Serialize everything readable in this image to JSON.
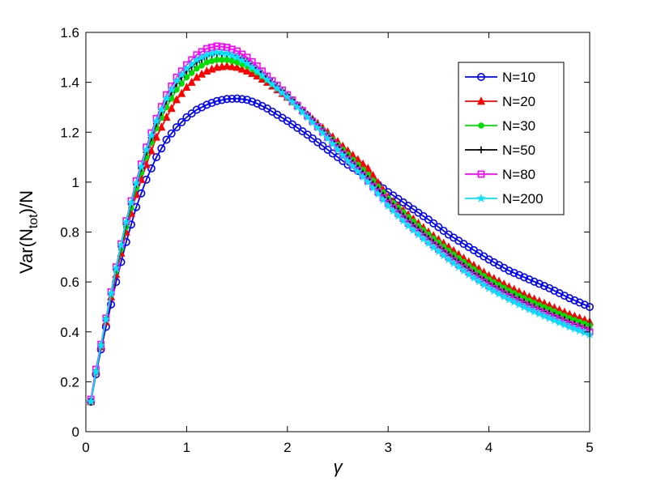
{
  "chart_data": {
    "type": "line",
    "xlabel": "γ",
    "ylabel": {
      "main": "Var(N",
      "sub": "tot",
      "tail": ")/N"
    },
    "xlim": [
      0,
      5
    ],
    "ylim": [
      0,
      1.6
    ],
    "xticks": [
      0,
      1,
      2,
      3,
      4,
      5
    ],
    "xtick_labels": [
      "0",
      "1",
      "2",
      "3",
      "4",
      "5"
    ],
    "yticks": [
      0,
      0.2,
      0.4,
      0.6,
      0.8,
      1.0,
      1.2,
      1.4,
      1.6
    ],
    "ytick_labels": [
      "0",
      "0.2",
      "0.4",
      "0.6",
      "0.8",
      "1",
      "1.2",
      "1.4",
      "1.6"
    ],
    "grid": false,
    "legend_position": "top-right",
    "x_range": {
      "start": 0.05,
      "end": 5.0,
      "step": 0.05
    },
    "series": [
      {
        "name": "N=10",
        "color": "#0000ff",
        "marker": "circle",
        "points": [
          [
            0.05,
            0.12
          ],
          [
            0.1,
            0.23
          ],
          [
            0.15,
            0.33
          ],
          [
            0.2,
            0.42
          ],
          [
            0.25,
            0.51
          ],
          [
            0.3,
            0.6
          ],
          [
            0.4,
            0.76
          ],
          [
            0.5,
            0.9
          ],
          [
            0.6,
            1.01
          ],
          [
            0.7,
            1.1
          ],
          [
            0.8,
            1.17
          ],
          [
            0.9,
            1.22
          ],
          [
            1.0,
            1.26
          ],
          [
            1.1,
            1.29
          ],
          [
            1.2,
            1.31
          ],
          [
            1.3,
            1.325
          ],
          [
            1.4,
            1.333
          ],
          [
            1.5,
            1.335
          ],
          [
            1.6,
            1.33
          ],
          [
            1.7,
            1.315
          ],
          [
            1.8,
            1.295
          ],
          [
            2.0,
            1.245
          ],
          [
            2.2,
            1.19
          ],
          [
            2.4,
            1.13
          ],
          [
            2.6,
            1.07
          ],
          [
            2.8,
            1.02
          ],
          [
            3.0,
            0.96
          ],
          [
            3.2,
            0.905
          ],
          [
            3.4,
            0.85
          ],
          [
            3.6,
            0.79
          ],
          [
            3.8,
            0.74
          ],
          [
            4.0,
            0.69
          ],
          [
            4.2,
            0.645
          ],
          [
            4.4,
            0.61
          ],
          [
            4.6,
            0.575
          ],
          [
            4.8,
            0.535
          ],
          [
            5.0,
            0.5
          ]
        ]
      },
      {
        "name": "N=20",
        "color": "#ff0000",
        "marker": "triangle",
        "points": [
          [
            0.05,
            0.12
          ],
          [
            0.1,
            0.24
          ],
          [
            0.15,
            0.34
          ],
          [
            0.2,
            0.44
          ],
          [
            0.25,
            0.54
          ],
          [
            0.3,
            0.63
          ],
          [
            0.4,
            0.8
          ],
          [
            0.5,
            0.95
          ],
          [
            0.6,
            1.07
          ],
          [
            0.7,
            1.18
          ],
          [
            0.8,
            1.26
          ],
          [
            0.9,
            1.33
          ],
          [
            1.0,
            1.38
          ],
          [
            1.1,
            1.42
          ],
          [
            1.2,
            1.445
          ],
          [
            1.3,
            1.46
          ],
          [
            1.4,
            1.465
          ],
          [
            1.5,
            1.46
          ],
          [
            1.6,
            1.445
          ],
          [
            1.7,
            1.425
          ],
          [
            1.8,
            1.4
          ],
          [
            2.0,
            1.34
          ],
          [
            2.2,
            1.27
          ],
          [
            2.4,
            1.2
          ],
          [
            2.6,
            1.125
          ],
          [
            2.8,
            1.055
          ],
          [
            3.0,
            0.94
          ],
          [
            3.2,
            0.87
          ],
          [
            3.4,
            0.8
          ],
          [
            3.6,
            0.74
          ],
          [
            3.8,
            0.68
          ],
          [
            4.0,
            0.625
          ],
          [
            4.2,
            0.58
          ],
          [
            4.4,
            0.54
          ],
          [
            4.6,
            0.505
          ],
          [
            4.8,
            0.47
          ],
          [
            5.0,
            0.44
          ]
        ]
      },
      {
        "name": "N=30",
        "color": "#00e000",
        "marker": "dot",
        "points": [
          [
            0.05,
            0.12
          ],
          [
            0.1,
            0.24
          ],
          [
            0.15,
            0.345
          ],
          [
            0.2,
            0.45
          ],
          [
            0.25,
            0.55
          ],
          [
            0.3,
            0.645
          ],
          [
            0.4,
            0.82
          ],
          [
            0.5,
            0.975
          ],
          [
            0.6,
            1.1
          ],
          [
            0.7,
            1.215
          ],
          [
            0.8,
            1.3
          ],
          [
            0.9,
            1.37
          ],
          [
            1.0,
            1.42
          ],
          [
            1.1,
            1.455
          ],
          [
            1.2,
            1.48
          ],
          [
            1.3,
            1.49
          ],
          [
            1.4,
            1.49
          ],
          [
            1.5,
            1.48
          ],
          [
            1.6,
            1.465
          ],
          [
            1.7,
            1.44
          ],
          [
            1.8,
            1.41
          ],
          [
            2.0,
            1.345
          ],
          [
            2.2,
            1.27
          ],
          [
            2.4,
            1.19
          ],
          [
            2.6,
            1.11
          ],
          [
            2.8,
            1.03
          ],
          [
            3.0,
            0.935
          ],
          [
            3.2,
            0.86
          ],
          [
            3.4,
            0.79
          ],
          [
            3.6,
            0.725
          ],
          [
            3.8,
            0.665
          ],
          [
            4.0,
            0.61
          ],
          [
            4.2,
            0.565
          ],
          [
            4.4,
            0.525
          ],
          [
            4.6,
            0.49
          ],
          [
            4.8,
            0.455
          ],
          [
            5.0,
            0.425
          ]
        ]
      },
      {
        "name": "N=50",
        "color": "#000000",
        "marker": "plus",
        "points": [
          [
            0.05,
            0.12
          ],
          [
            0.1,
            0.24
          ],
          [
            0.15,
            0.345
          ],
          [
            0.2,
            0.45
          ],
          [
            0.25,
            0.555
          ],
          [
            0.3,
            0.65
          ],
          [
            0.4,
            0.83
          ],
          [
            0.5,
            0.99
          ],
          [
            0.6,
            1.12
          ],
          [
            0.7,
            1.235
          ],
          [
            0.8,
            1.325
          ],
          [
            0.9,
            1.395
          ],
          [
            1.0,
            1.445
          ],
          [
            1.1,
            1.48
          ],
          [
            1.2,
            1.505
          ],
          [
            1.3,
            1.515
          ],
          [
            1.4,
            1.515
          ],
          [
            1.5,
            1.505
          ],
          [
            1.6,
            1.485
          ],
          [
            1.7,
            1.455
          ],
          [
            1.8,
            1.42
          ],
          [
            2.0,
            1.35
          ],
          [
            2.2,
            1.27
          ],
          [
            2.4,
            1.185
          ],
          [
            2.6,
            1.1
          ],
          [
            2.8,
            1.015
          ],
          [
            3.0,
            0.925
          ],
          [
            3.2,
            0.845
          ],
          [
            3.4,
            0.775
          ],
          [
            3.6,
            0.71
          ],
          [
            3.8,
            0.65
          ],
          [
            4.0,
            0.595
          ],
          [
            4.2,
            0.55
          ],
          [
            4.4,
            0.51
          ],
          [
            4.6,
            0.475
          ],
          [
            4.8,
            0.44
          ],
          [
            5.0,
            0.41
          ]
        ]
      },
      {
        "name": "N=80",
        "color": "#ff00ff",
        "marker": "square",
        "points": [
          [
            0.05,
            0.13
          ],
          [
            0.1,
            0.25
          ],
          [
            0.15,
            0.35
          ],
          [
            0.2,
            0.455
          ],
          [
            0.25,
            0.56
          ],
          [
            0.3,
            0.66
          ],
          [
            0.4,
            0.845
          ],
          [
            0.5,
            1.005
          ],
          [
            0.6,
            1.14
          ],
          [
            0.7,
            1.255
          ],
          [
            0.8,
            1.35
          ],
          [
            0.9,
            1.42
          ],
          [
            1.0,
            1.47
          ],
          [
            1.1,
            1.51
          ],
          [
            1.2,
            1.535
          ],
          [
            1.3,
            1.545
          ],
          [
            1.4,
            1.54
          ],
          [
            1.5,
            1.525
          ],
          [
            1.6,
            1.5
          ],
          [
            1.7,
            1.465
          ],
          [
            1.8,
            1.425
          ],
          [
            2.0,
            1.35
          ],
          [
            2.2,
            1.265
          ],
          [
            2.4,
            1.18
          ],
          [
            2.6,
            1.09
          ],
          [
            2.8,
            1.005
          ],
          [
            3.0,
            0.915
          ],
          [
            3.2,
            0.835
          ],
          [
            3.4,
            0.765
          ],
          [
            3.6,
            0.7
          ],
          [
            3.8,
            0.64
          ],
          [
            4.0,
            0.585
          ],
          [
            4.2,
            0.54
          ],
          [
            4.4,
            0.5
          ],
          [
            4.6,
            0.465
          ],
          [
            4.8,
            0.43
          ],
          [
            5.0,
            0.4
          ]
        ]
      },
      {
        "name": "N=200",
        "color": "#00e5ff",
        "marker": "star",
        "points": [
          [
            0.05,
            0.12
          ],
          [
            0.1,
            0.24
          ],
          [
            0.15,
            0.345
          ],
          [
            0.2,
            0.45
          ],
          [
            0.25,
            0.555
          ],
          [
            0.3,
            0.655
          ],
          [
            0.4,
            0.84
          ],
          [
            0.5,
            0.995
          ],
          [
            0.6,
            1.13
          ],
          [
            0.7,
            1.245
          ],
          [
            0.8,
            1.335
          ],
          [
            0.9,
            1.405
          ],
          [
            1.0,
            1.455
          ],
          [
            1.1,
            1.49
          ],
          [
            1.2,
            1.51
          ],
          [
            1.3,
            1.52
          ],
          [
            1.4,
            1.515
          ],
          [
            1.5,
            1.5
          ],
          [
            1.6,
            1.475
          ],
          [
            1.7,
            1.445
          ],
          [
            1.8,
            1.41
          ],
          [
            2.0,
            1.34
          ],
          [
            2.2,
            1.26
          ],
          [
            2.4,
            1.175
          ],
          [
            2.6,
            1.085
          ],
          [
            2.8,
            1.0
          ],
          [
            3.0,
            0.905
          ],
          [
            3.2,
            0.825
          ],
          [
            3.4,
            0.755
          ],
          [
            3.6,
            0.69
          ],
          [
            3.8,
            0.63
          ],
          [
            4.0,
            0.575
          ],
          [
            4.2,
            0.53
          ],
          [
            4.4,
            0.49
          ],
          [
            4.6,
            0.455
          ],
          [
            4.8,
            0.42
          ],
          [
            5.0,
            0.39
          ]
        ]
      }
    ]
  }
}
